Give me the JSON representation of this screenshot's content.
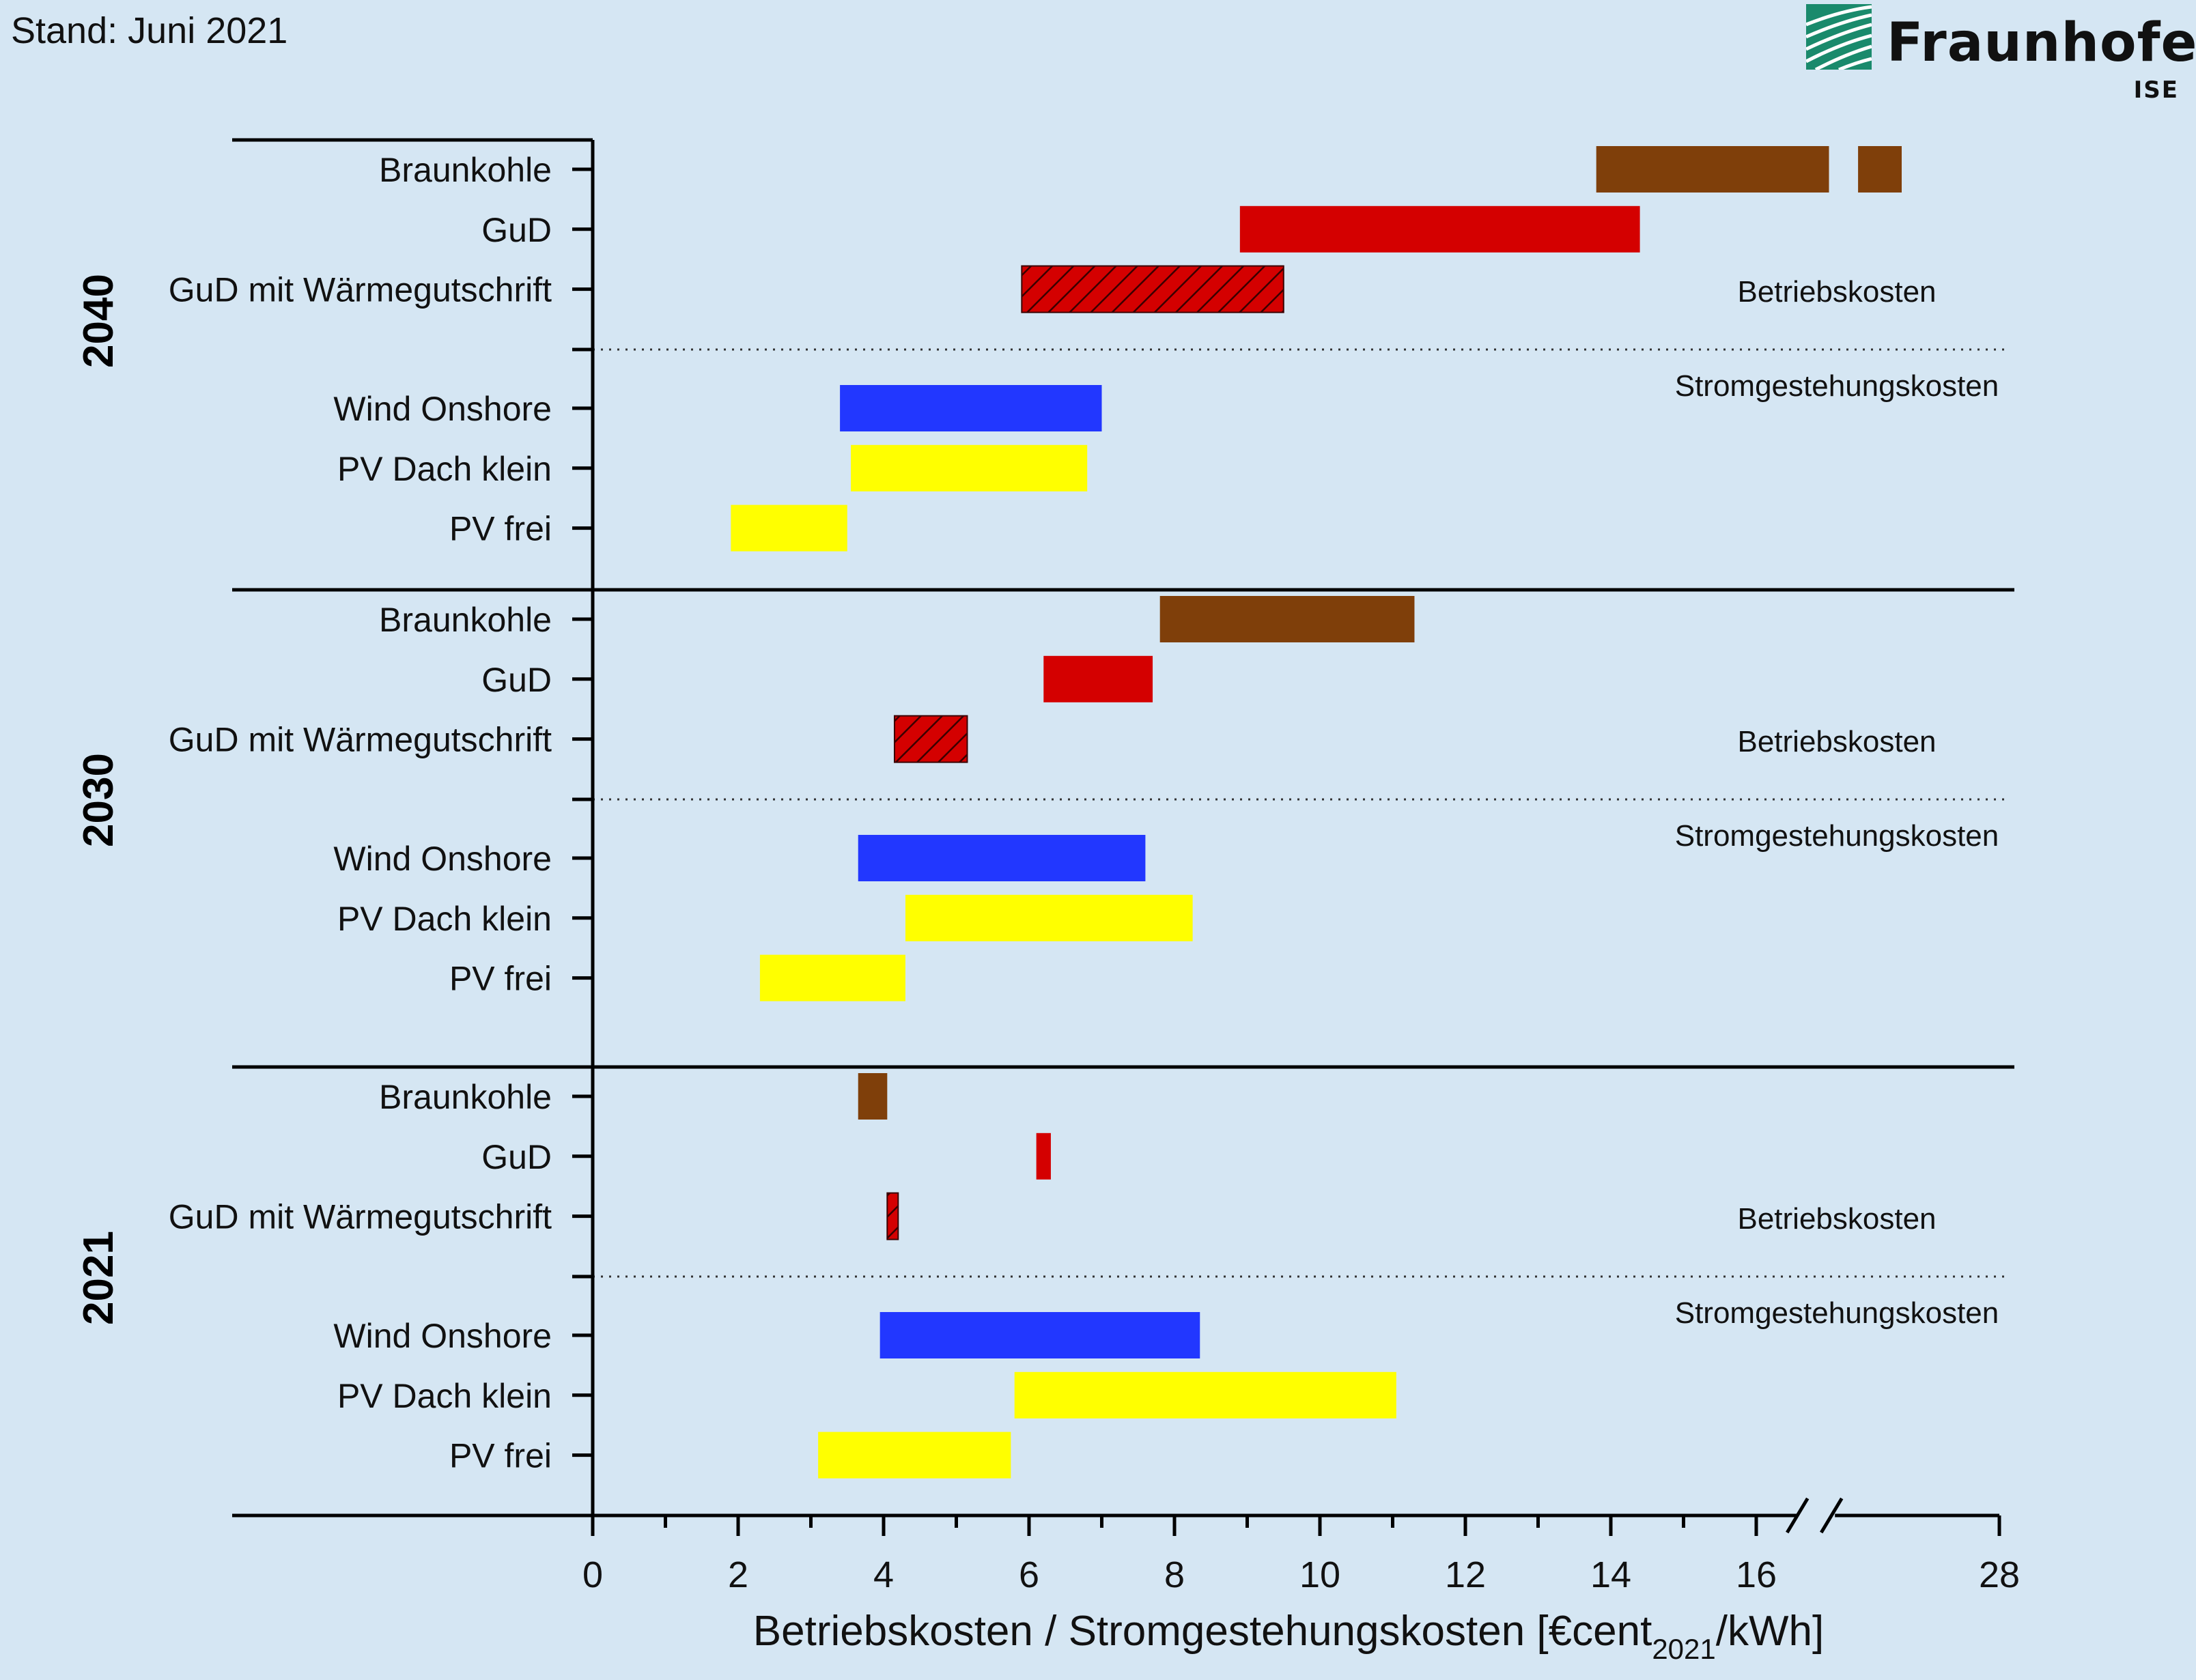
{
  "stand": "Stand: Juni 2021",
  "logo": {
    "name": "Fraunhofer",
    "sub": "ISE",
    "color": "#1a8a6c"
  },
  "chart_data": {
    "type": "bar",
    "orientation": "horizontal-range",
    "xlabel_main": "Betriebskosten / Stromgestehungskosten [€cent",
    "xlabel_sub": "2021",
    "xlabel_end": "/kWh]",
    "x_ticks": [
      "0",
      "2",
      "4",
      "6",
      "8",
      "10",
      "12",
      "14",
      "16",
      "28"
    ],
    "x_axis_break": {
      "between": [
        16,
        28
      ]
    },
    "xlim": [
      0,
      28
    ],
    "section_labels": {
      "upper": "Betriebskosten",
      "lower": "Stromgestehungskosten"
    },
    "colors": {
      "Braunkohle": "#7f3f0a",
      "GuD": "#d40000",
      "GuD mit Wärmegutschrift": "#d40000",
      "Wind Onshore": "#2237ff",
      "PV Dach klein": "#ffff00",
      "PV frei": "#ffff00"
    },
    "groups": [
      {
        "year": "2040",
        "bars": [
          {
            "label": "Braunkohle",
            "segments": [
              [
                13.8,
                17.0
              ],
              [
                17.4,
                18.0
              ]
            ]
          },
          {
            "label": "GuD",
            "segments": [
              [
                8.9,
                14.4
              ]
            ]
          },
          {
            "label": "GuD mit Wärmegutschrift",
            "segments": [
              [
                5.9,
                9.5
              ]
            ],
            "hatched": true
          },
          {
            "label": "Wind Onshore",
            "segments": [
              [
                3.4,
                7.0
              ]
            ]
          },
          {
            "label": "PV Dach klein",
            "segments": [
              [
                3.55,
                6.8
              ]
            ]
          },
          {
            "label": "PV frei",
            "segments": [
              [
                1.9,
                3.5
              ]
            ]
          }
        ]
      },
      {
        "year": "2030",
        "bars": [
          {
            "label": "Braunkohle",
            "segments": [
              [
                7.8,
                11.3
              ]
            ]
          },
          {
            "label": "GuD",
            "segments": [
              [
                6.2,
                7.7
              ]
            ]
          },
          {
            "label": "GuD mit Wärmegutschrift",
            "segments": [
              [
                4.15,
                5.15
              ]
            ],
            "hatched": true
          },
          {
            "label": "Wind Onshore",
            "segments": [
              [
                3.65,
                7.6
              ]
            ]
          },
          {
            "label": "PV Dach klein",
            "segments": [
              [
                4.3,
                8.25
              ]
            ]
          },
          {
            "label": "PV frei",
            "segments": [
              [
                2.3,
                4.3
              ]
            ]
          }
        ]
      },
      {
        "year": "2021",
        "bars": [
          {
            "label": "Braunkohle",
            "segments": [
              [
                3.65,
                4.05
              ]
            ]
          },
          {
            "label": "GuD",
            "segments": [
              [
                6.1,
                6.3
              ]
            ]
          },
          {
            "label": "GuD mit Wärmegutschrift",
            "segments": [
              [
                4.05,
                4.2
              ]
            ],
            "hatched": true
          },
          {
            "label": "Wind Onshore",
            "segments": [
              [
                3.95,
                8.35
              ]
            ]
          },
          {
            "label": "PV Dach klein",
            "segments": [
              [
                5.8,
                11.05
              ]
            ]
          },
          {
            "label": "PV frei",
            "segments": [
              [
                3.1,
                5.75
              ]
            ]
          }
        ]
      }
    ]
  }
}
